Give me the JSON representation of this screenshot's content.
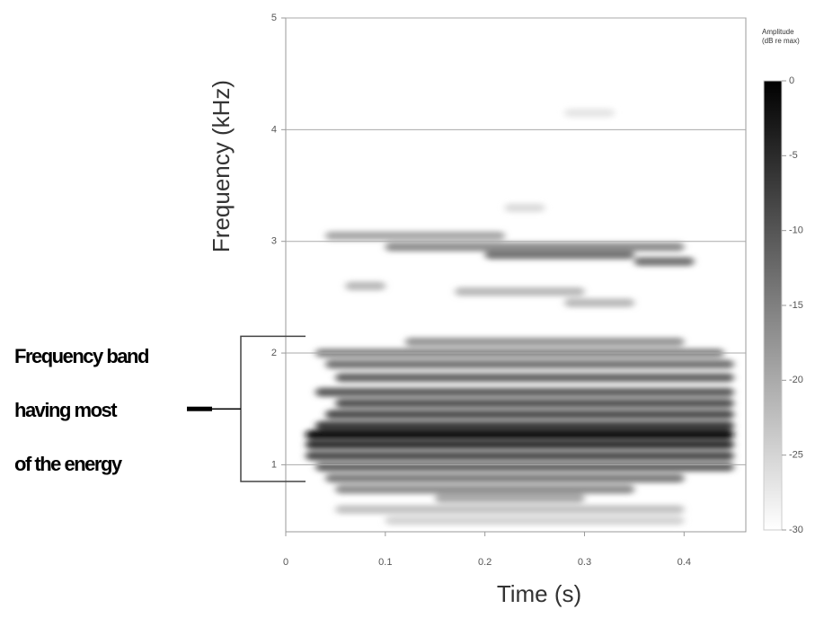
{
  "chart_data": {
    "type": "spectrogram",
    "x_label": "Time (s)",
    "y_label": "Frequency (kHz)",
    "xlim": [
      0,
      0.462
    ],
    "ylim": [
      0.4,
      5
    ],
    "xticks": [
      0,
      0.1,
      0.2,
      0.3,
      0.4
    ],
    "yticks": [
      1,
      2,
      3,
      4,
      5
    ],
    "grid": true,
    "colorbar": {
      "title": [
        "Amplitude",
        "(dB re max)"
      ],
      "clim": [
        -30,
        0
      ],
      "ticks": [
        0,
        -5,
        -10,
        -15,
        -20,
        -25,
        -30
      ],
      "low_color": "#ffffff",
      "high_color": "#000000"
    },
    "annotation": {
      "lines": [
        "Frequency band",
        "having most",
        "of the energy"
      ],
      "range": [
        0.85,
        2.15
      ]
    },
    "bands": [
      {
        "freq": 4.15,
        "time": [
          0.28,
          0.33
        ],
        "amp": -27
      },
      {
        "freq": 3.3,
        "time": [
          0.22,
          0.26
        ],
        "amp": -26
      },
      {
        "freq": 3.05,
        "time": [
          0.04,
          0.22
        ],
        "amp": -20
      },
      {
        "freq": 2.95,
        "time": [
          0.1,
          0.4
        ],
        "amp": -17
      },
      {
        "freq": 2.88,
        "time": [
          0.2,
          0.35
        ],
        "amp": -14
      },
      {
        "freq": 2.82,
        "time": [
          0.35,
          0.41
        ],
        "amp": -14
      },
      {
        "freq": 2.6,
        "time": [
          0.06,
          0.1
        ],
        "amp": -22
      },
      {
        "freq": 2.55,
        "time": [
          0.17,
          0.3
        ],
        "amp": -22
      },
      {
        "freq": 2.45,
        "time": [
          0.28,
          0.35
        ],
        "amp": -22
      },
      {
        "freq": 2.1,
        "time": [
          0.12,
          0.4
        ],
        "amp": -18
      },
      {
        "freq": 2.0,
        "time": [
          0.03,
          0.44
        ],
        "amp": -16
      },
      {
        "freq": 1.9,
        "time": [
          0.04,
          0.45
        ],
        "amp": -14
      },
      {
        "freq": 1.78,
        "time": [
          0.05,
          0.45
        ],
        "amp": -12
      },
      {
        "freq": 1.65,
        "time": [
          0.03,
          0.45
        ],
        "amp": -11
      },
      {
        "freq": 1.55,
        "time": [
          0.05,
          0.45
        ],
        "amp": -10
      },
      {
        "freq": 1.45,
        "time": [
          0.04,
          0.45
        ],
        "amp": -9
      },
      {
        "freq": 1.35,
        "time": [
          0.03,
          0.45
        ],
        "amp": -7
      },
      {
        "freq": 1.27,
        "time": [
          0.02,
          0.45
        ],
        "amp": -2
      },
      {
        "freq": 1.18,
        "time": [
          0.02,
          0.45
        ],
        "amp": -6
      },
      {
        "freq": 1.08,
        "time": [
          0.02,
          0.45
        ],
        "amp": -9
      },
      {
        "freq": 0.98,
        "time": [
          0.03,
          0.45
        ],
        "amp": -12
      },
      {
        "freq": 0.88,
        "time": [
          0.04,
          0.4
        ],
        "amp": -15
      },
      {
        "freq": 0.78,
        "time": [
          0.05,
          0.35
        ],
        "amp": -17
      },
      {
        "freq": 0.7,
        "time": [
          0.15,
          0.3
        ],
        "amp": -20
      },
      {
        "freq": 0.6,
        "time": [
          0.05,
          0.4
        ],
        "amp": -23
      },
      {
        "freq": 0.5,
        "time": [
          0.1,
          0.4
        ],
        "amp": -25
      }
    ]
  }
}
